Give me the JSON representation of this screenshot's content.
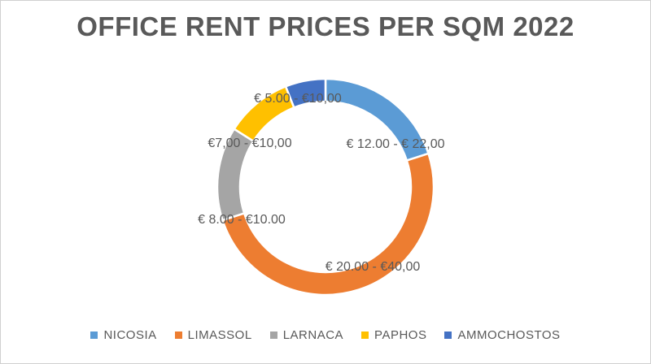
{
  "chart_data": {
    "type": "pie",
    "style": "donut",
    "title": "OFFICE RENT PRICES PER SQM 2022",
    "categories": [
      "NICOSIA",
      "LIMASSOL",
      "LARNACA",
      "PAPHOS",
      "AMMOCHOSTOS"
    ],
    "values": [
      20,
      50,
      14,
      10,
      6
    ],
    "data_labels": [
      "€ 12.00 - € 22,00",
      "€ 20.00 - €40,00",
      "€ 8.00 - €10.00",
      "€7,00 - €10,00",
      "€ 5.00 - €10,00"
    ],
    "colors": [
      "#5B9BD5",
      "#ED7D31",
      "#A5A5A5",
      "#FFC000",
      "#4472C4"
    ],
    "legend": "bottom"
  }
}
